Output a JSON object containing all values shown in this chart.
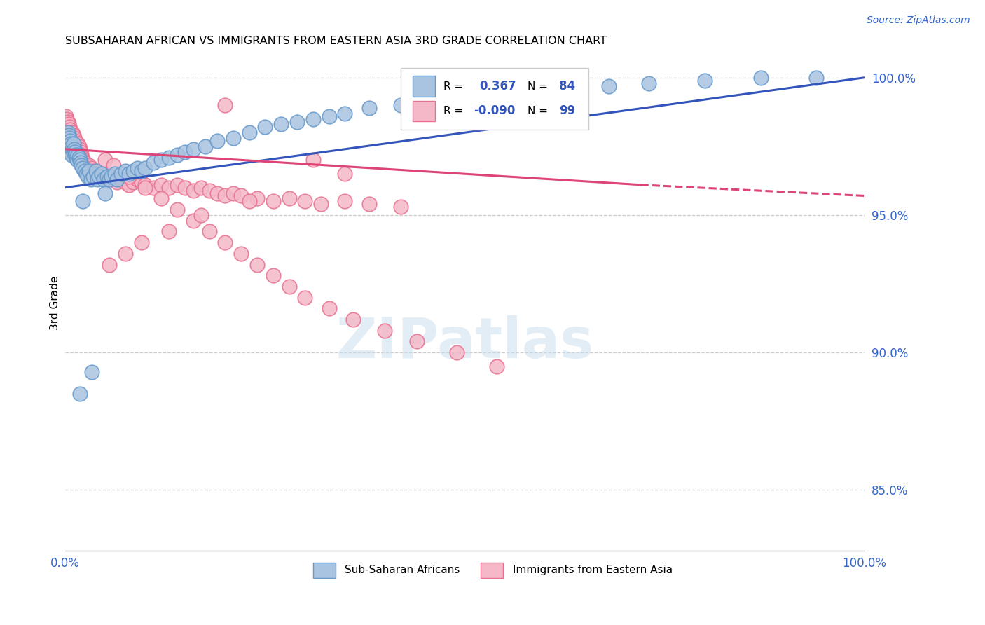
{
  "title": "SUBSAHARAN AFRICAN VS IMMIGRANTS FROM EASTERN ASIA 3RD GRADE CORRELATION CHART",
  "source": "Source: ZipAtlas.com",
  "ylabel": "3rd Grade",
  "watermark": "ZIPatlas",
  "legend_blue_r": "0.367",
  "legend_blue_n": "84",
  "legend_pink_r": "-0.090",
  "legend_pink_n": "99",
  "legend_blue_label": "Sub-Saharan Africans",
  "legend_pink_label": "Immigrants from Eastern Asia",
  "blue_color": "#A8C4E0",
  "blue_edge_color": "#6699CC",
  "pink_color": "#F4B8C8",
  "pink_edge_color": "#E87090",
  "blue_line_color": "#3355BB",
  "pink_line_color": "#DD4477",
  "xlim": [
    0.0,
    1.0
  ],
  "ylim": [
    0.828,
    1.008
  ],
  "yticks": [
    1.0,
    0.95,
    0.9,
    0.85
  ],
  "ytick_labels": [
    "100.0%",
    "95.0%",
    "90.0%",
    "85.0%"
  ],
  "blue_x": [
    0.001,
    0.002,
    0.002,
    0.003,
    0.003,
    0.004,
    0.004,
    0.005,
    0.005,
    0.006,
    0.006,
    0.007,
    0.007,
    0.008,
    0.008,
    0.009,
    0.01,
    0.01,
    0.011,
    0.012,
    0.013,
    0.014,
    0.015,
    0.016,
    0.017,
    0.018,
    0.019,
    0.02,
    0.022,
    0.024,
    0.026,
    0.028,
    0.03,
    0.032,
    0.035,
    0.038,
    0.04,
    0.042,
    0.045,
    0.048,
    0.052,
    0.055,
    0.058,
    0.062,
    0.065,
    0.07,
    0.075,
    0.08,
    0.085,
    0.09,
    0.095,
    0.1,
    0.11,
    0.12,
    0.13,
    0.14,
    0.15,
    0.16,
    0.175,
    0.19,
    0.21,
    0.23,
    0.25,
    0.27,
    0.29,
    0.31,
    0.33,
    0.35,
    0.38,
    0.42,
    0.46,
    0.5,
    0.54,
    0.58,
    0.63,
    0.68,
    0.73,
    0.8,
    0.87,
    0.94,
    0.05,
    0.022,
    0.033,
    0.018
  ],
  "blue_y": [
    0.979,
    0.977,
    0.975,
    0.98,
    0.978,
    0.979,
    0.976,
    0.978,
    0.975,
    0.977,
    0.974,
    0.976,
    0.973,
    0.975,
    0.972,
    0.974,
    0.976,
    0.973,
    0.974,
    0.973,
    0.972,
    0.971,
    0.97,
    0.972,
    0.971,
    0.97,
    0.969,
    0.968,
    0.967,
    0.966,
    0.965,
    0.964,
    0.966,
    0.963,
    0.964,
    0.966,
    0.963,
    0.964,
    0.965,
    0.963,
    0.964,
    0.963,
    0.964,
    0.965,
    0.963,
    0.965,
    0.966,
    0.965,
    0.966,
    0.967,
    0.966,
    0.967,
    0.969,
    0.97,
    0.971,
    0.972,
    0.973,
    0.974,
    0.975,
    0.977,
    0.978,
    0.98,
    0.982,
    0.983,
    0.984,
    0.985,
    0.986,
    0.987,
    0.989,
    0.99,
    0.992,
    0.993,
    0.994,
    0.995,
    0.996,
    0.997,
    0.998,
    0.999,
    1.0,
    1.0,
    0.958,
    0.955,
    0.893,
    0.885
  ],
  "pink_x": [
    0.001,
    0.001,
    0.002,
    0.002,
    0.003,
    0.003,
    0.004,
    0.004,
    0.005,
    0.005,
    0.006,
    0.006,
    0.007,
    0.007,
    0.008,
    0.009,
    0.009,
    0.01,
    0.011,
    0.012,
    0.013,
    0.014,
    0.015,
    0.016,
    0.017,
    0.018,
    0.019,
    0.02,
    0.021,
    0.022,
    0.024,
    0.026,
    0.028,
    0.03,
    0.033,
    0.036,
    0.04,
    0.044,
    0.048,
    0.052,
    0.056,
    0.06,
    0.065,
    0.07,
    0.075,
    0.08,
    0.085,
    0.09,
    0.095,
    0.1,
    0.11,
    0.12,
    0.13,
    0.14,
    0.15,
    0.16,
    0.17,
    0.18,
    0.19,
    0.2,
    0.21,
    0.22,
    0.24,
    0.26,
    0.28,
    0.3,
    0.32,
    0.35,
    0.38,
    0.42,
    0.05,
    0.06,
    0.08,
    0.1,
    0.12,
    0.14,
    0.16,
    0.18,
    0.2,
    0.22,
    0.24,
    0.26,
    0.28,
    0.3,
    0.33,
    0.36,
    0.4,
    0.44,
    0.49,
    0.54,
    0.2,
    0.31,
    0.35,
    0.23,
    0.17,
    0.13,
    0.095,
    0.075,
    0.055
  ],
  "pink_y": [
    0.986,
    0.983,
    0.985,
    0.982,
    0.984,
    0.981,
    0.983,
    0.98,
    0.982,
    0.979,
    0.981,
    0.978,
    0.98,
    0.977,
    0.979,
    0.98,
    0.977,
    0.979,
    0.978,
    0.977,
    0.976,
    0.975,
    0.974,
    0.976,
    0.975,
    0.974,
    0.973,
    0.972,
    0.971,
    0.97,
    0.969,
    0.968,
    0.967,
    0.968,
    0.967,
    0.966,
    0.965,
    0.964,
    0.965,
    0.963,
    0.964,
    0.963,
    0.962,
    0.963,
    0.962,
    0.961,
    0.962,
    0.963,
    0.962,
    0.961,
    0.96,
    0.961,
    0.96,
    0.961,
    0.96,
    0.959,
    0.96,
    0.959,
    0.958,
    0.957,
    0.958,
    0.957,
    0.956,
    0.955,
    0.956,
    0.955,
    0.954,
    0.955,
    0.954,
    0.953,
    0.97,
    0.968,
    0.964,
    0.96,
    0.956,
    0.952,
    0.948,
    0.944,
    0.94,
    0.936,
    0.932,
    0.928,
    0.924,
    0.92,
    0.916,
    0.912,
    0.908,
    0.904,
    0.9,
    0.895,
    0.99,
    0.97,
    0.965,
    0.955,
    0.95,
    0.944,
    0.94,
    0.936,
    0.932
  ],
  "blue_line_x0": 0.0,
  "blue_line_x1": 1.0,
  "blue_line_y0": 0.96,
  "blue_line_y1": 1.0,
  "pink_line_x0": 0.0,
  "pink_line_x1": 0.72,
  "pink_line_dash_x0": 0.72,
  "pink_line_dash_x1": 1.0,
  "pink_line_y0": 0.974,
  "pink_line_y1": 0.961,
  "pink_line_dash_y0": 0.961,
  "pink_line_dash_y1": 0.957
}
